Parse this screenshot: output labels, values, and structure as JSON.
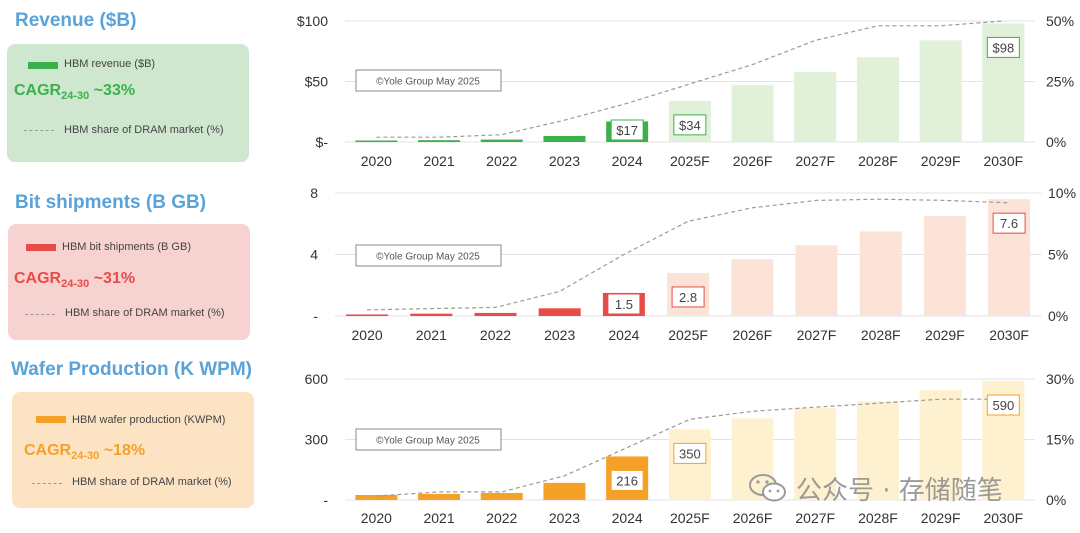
{
  "panels": [
    {
      "title": "Revenue ($B)",
      "legend": {
        "bar_label": "HBM revenue ($B)",
        "cagr_main": "CAGR",
        "cagr_sub": "24-30",
        "cagr_value": " ~33%",
        "line_label": "HBM share of DRAM market (%)"
      },
      "colors": {
        "title": "#5aa3d9",
        "box": "#cfe7cf",
        "strong": "#3cb04c",
        "light": "#e1f0d9",
        "label_border": "#3cb04c",
        "cagr": "#3cb04c"
      }
    },
    {
      "title": "Bit shipments (B GB)",
      "legend": {
        "bar_label": "HBM bit shipments (B GB)",
        "cagr_main": "CAGR",
        "cagr_sub": "24-30",
        "cagr_value": " ~31%",
        "line_label": "HBM share of DRAM market (%)"
      },
      "colors": {
        "title": "#5aa3d9",
        "box": "#f6d3d0",
        "strong": "#e84c48",
        "light": "#fbe3d8",
        "label_border": "#e84c48",
        "cagr": "#e84c48"
      }
    },
    {
      "title": "Wafer Production (K WPM)",
      "legend": {
        "bar_label": "HBM wafer production (KWPM)",
        "cagr_main": "CAGR",
        "cagr_sub": "24-30",
        "cagr_value": " ~18%",
        "line_label": "HBM share of DRAM market (%)"
      },
      "colors": {
        "title": "#5aa3d9",
        "box": "#fbe3c4",
        "strong": "#f5a128",
        "light": "#fdf1cf",
        "label_border": "#f5a128",
        "cagr": "#f5a128"
      }
    }
  ],
  "watermark": "公众号 · 存储随笔",
  "chart_data": [
    {
      "type": "bar",
      "categories": [
        "2020",
        "2021",
        "2022",
        "2023",
        "2024",
        "2025F",
        "2026F",
        "2027F",
        "2028F",
        "2029F",
        "2030F"
      ],
      "values": [
        1,
        1.5,
        2,
        5,
        17,
        34,
        47,
        58,
        70,
        84,
        98
      ],
      "series_line": [
        2,
        2,
        3,
        9,
        16,
        24,
        32,
        42,
        48,
        48,
        50
      ],
      "left_ticks": [
        "$-",
        "$50",
        "$100"
      ],
      "right_ticks": [
        "0%",
        "25%",
        "50%"
      ],
      "ylim": [
        0,
        100
      ],
      "y2lim": [
        0,
        50
      ],
      "data_labels": [
        {
          "index": 4,
          "text": "$17"
        },
        {
          "index": 5,
          "text": "$34"
        },
        {
          "index": 10,
          "text": "$98"
        }
      ],
      "annotation": "©Yole Group May 2025"
    },
    {
      "type": "bar",
      "categories": [
        "2020",
        "2021",
        "2022",
        "2023",
        "2024",
        "2025F",
        "2026F",
        "2027F",
        "2028F",
        "2029F",
        "2030F"
      ],
      "values": [
        0.1,
        0.15,
        0.2,
        0.5,
        1.5,
        2.8,
        3.7,
        4.6,
        5.5,
        6.5,
        7.6
      ],
      "series_line": [
        0.5,
        0.6,
        0.7,
        2,
        5,
        7.7,
        8.8,
        9.4,
        9.5,
        9.4,
        9.2
      ],
      "left_ticks": [
        "-",
        "4",
        "8"
      ],
      "right_ticks": [
        "0%",
        "5%",
        "10%"
      ],
      "ylim": [
        0,
        8
      ],
      "y2lim": [
        0,
        10
      ],
      "data_labels": [
        {
          "index": 4,
          "text": "1.5"
        },
        {
          "index": 5,
          "text": "2.8"
        },
        {
          "index": 10,
          "text": "7.6"
        }
      ],
      "annotation": "©Yole Group May 2025"
    },
    {
      "type": "bar",
      "categories": [
        "2020",
        "2021",
        "2022",
        "2023",
        "2024",
        "2025F",
        "2026F",
        "2027F",
        "2028F",
        "2029F",
        "2030F"
      ],
      "values": [
        25,
        30,
        35,
        85,
        216,
        350,
        405,
        455,
        490,
        545,
        590
      ],
      "series_line": [
        1,
        2,
        2,
        6,
        13,
        20,
        22,
        23,
        24,
        25,
        25
      ],
      "left_ticks": [
        "-",
        "300",
        "600"
      ],
      "right_ticks": [
        "0%",
        "15%",
        "30%"
      ],
      "ylim": [
        0,
        600
      ],
      "y2lim": [
        0,
        30
      ],
      "data_labels": [
        {
          "index": 4,
          "text": "216"
        },
        {
          "index": 5,
          "text": "350"
        },
        {
          "index": 10,
          "text": "590"
        }
      ],
      "annotation": "©Yole Group May 2025"
    }
  ]
}
